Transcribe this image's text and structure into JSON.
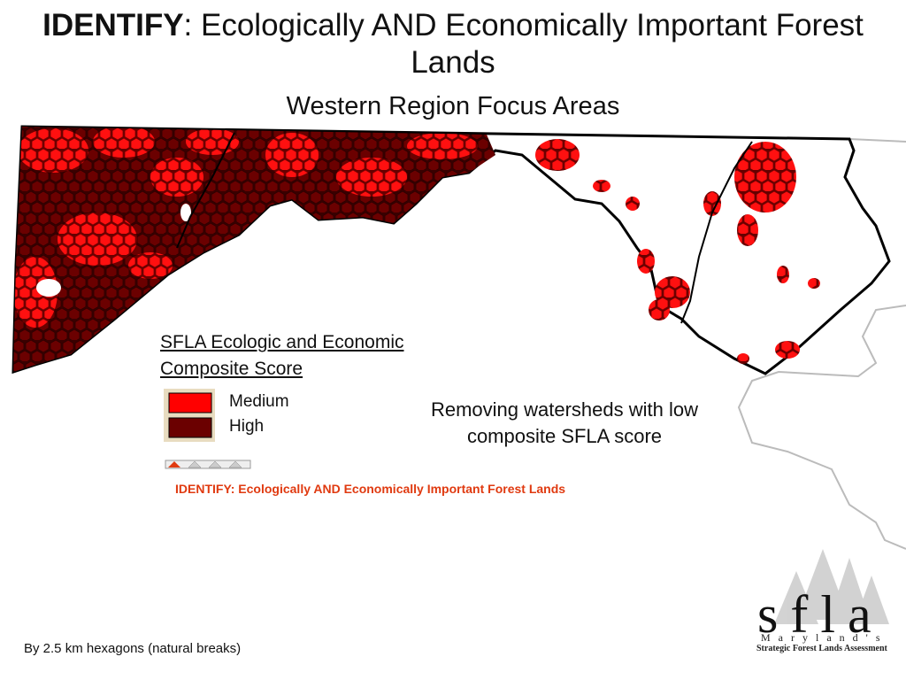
{
  "header": {
    "title_bold": "IDENTIFY",
    "title_rest": ":  Ecologically AND Economically Important Forest Lands",
    "subtitle": "Western Region Focus Areas"
  },
  "legend": {
    "title": "SFLA Ecologic and Economic Composite Score",
    "items": [
      {
        "label": "Medium",
        "color": "#ff0000"
      },
      {
        "label": "High",
        "color": "#6b0000"
      }
    ]
  },
  "note": "Removing watersheds with low composite SFLA score",
  "footer_title": "IDENTIFY:  Ecologically AND Economically Important Forest Lands",
  "caption": "By 2.5 km hexagons (natural breaks)",
  "logo": {
    "name": "sfla",
    "state": "Maryland's",
    "full": "Strategic Forest Lands Assessment"
  }
}
